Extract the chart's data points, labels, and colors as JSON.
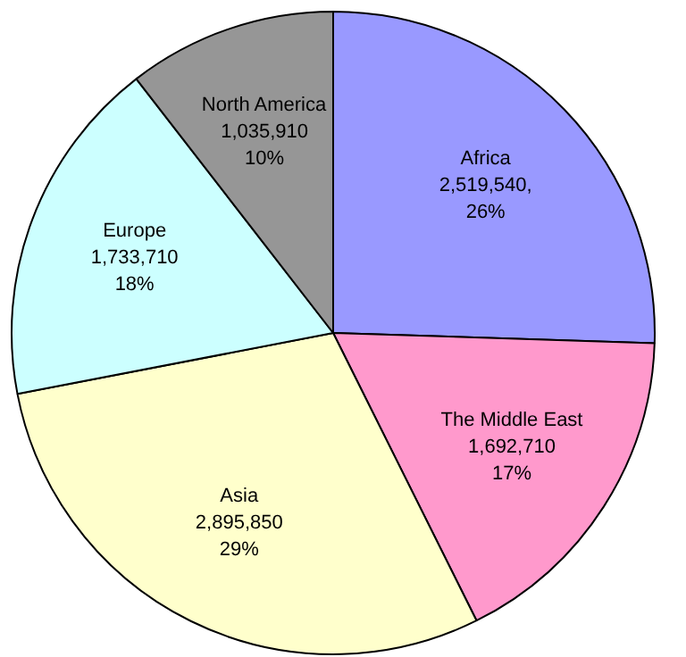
{
  "chart_data": {
    "type": "pie",
    "categories": [
      "Africa",
      "The Middle East",
      "Asia",
      "Europe",
      "North America"
    ],
    "values": [
      2519540,
      1692710,
      2895850,
      1733710,
      1035910
    ],
    "value_labels": [
      "2,519,540,\n26%",
      "1,692,710\n17%",
      "2,895,850\n29%",
      "1,733,710\n18%",
      "1,035,910\n10%"
    ],
    "colors": [
      "#9999ff",
      "#ff99cc",
      "#ffffcc",
      "#ccffff",
      "#969696"
    ]
  }
}
